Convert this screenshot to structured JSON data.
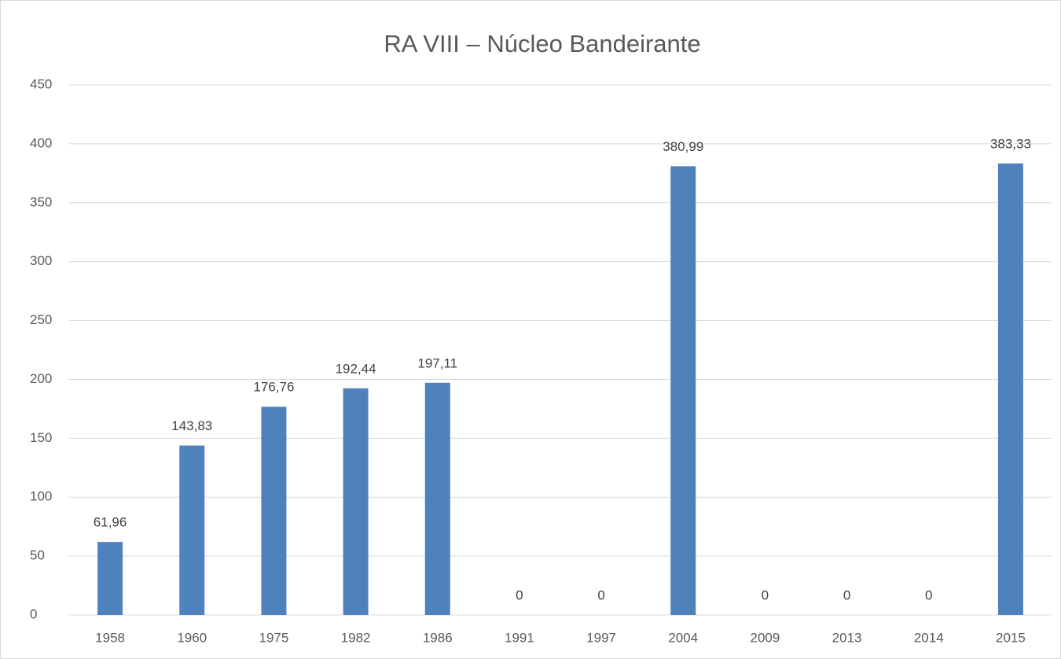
{
  "chart_data": {
    "type": "bar",
    "title": "RA VIII – Núcleo Bandeirante",
    "categories": [
      "1958",
      "1960",
      "1975",
      "1982",
      "1986",
      "1991",
      "1997",
      "2004",
      "2009",
      "2013",
      "2014",
      "2015"
    ],
    "values": [
      61.96,
      143.83,
      176.76,
      192.44,
      197.11,
      0,
      0,
      380.99,
      0,
      0,
      0,
      383.33
    ],
    "value_labels": [
      "61,96",
      "143,83",
      "176,76",
      "192,44",
      "197,11",
      "0",
      "0",
      "380,99",
      "0",
      "0",
      "0",
      "383,33"
    ],
    "color": "#4f81bd",
    "ylim": [
      0,
      450
    ],
    "yticks": [
      0,
      50,
      100,
      150,
      200,
      250,
      300,
      350,
      400,
      450
    ],
    "grid": true
  }
}
